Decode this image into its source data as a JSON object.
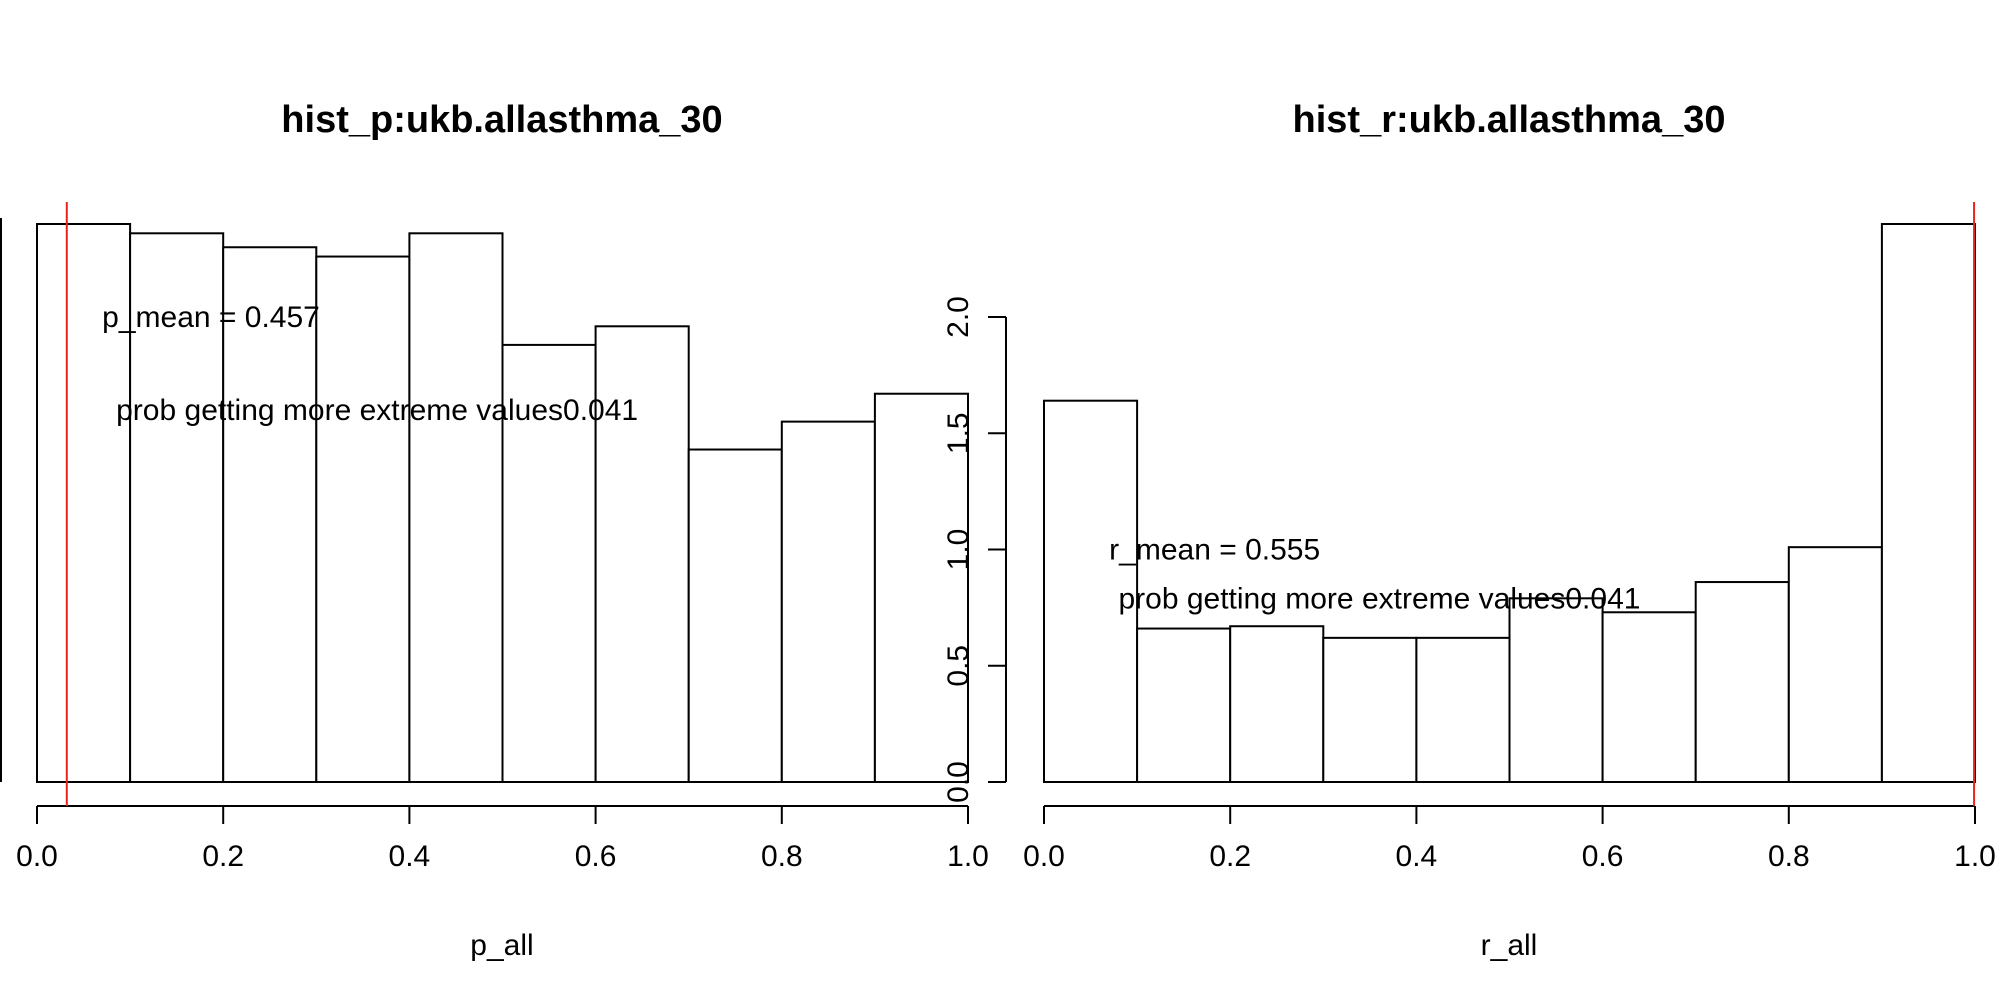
{
  "colors": {
    "reference_line": "#e8231d",
    "bar_fill": "#ffffff",
    "bar_stroke": "#000000"
  },
  "chart_data": [
    {
      "type": "bar",
      "title": "hist_p:ukb.allasthma_30",
      "xlabel": "p_all",
      "ylabel": "",
      "bins": [
        [
          0.0,
          0.1
        ],
        [
          0.1,
          0.2
        ],
        [
          0.2,
          0.3
        ],
        [
          0.3,
          0.4
        ],
        [
          0.4,
          0.5
        ],
        [
          0.5,
          0.6
        ],
        [
          0.6,
          0.7
        ],
        [
          0.7,
          0.8
        ],
        [
          0.8,
          0.9
        ],
        [
          0.9,
          1.0
        ]
      ],
      "values": [
        2.4,
        2.36,
        2.3,
        2.26,
        2.36,
        1.88,
        1.96,
        1.43,
        1.55,
        1.67
      ],
      "xlim": [
        0.0,
        1.0
      ],
      "ylim": [
        0.0,
        2.0
      ],
      "x_ticks": [
        "0.0",
        "0.2",
        "0.4",
        "0.6",
        "0.8",
        "1.0"
      ],
      "y_ticks": [],
      "reference_x": 0.032,
      "annotations": [
        {
          "id": "mean",
          "text": "p_mean = 0.457",
          "x": 0.07,
          "y": 2.0
        },
        {
          "id": "prob",
          "text": "prob getting more extreme values0.041",
          "x": 0.085,
          "y": 1.6
        }
      ],
      "grid": false
    },
    {
      "type": "bar",
      "title": "hist_r:ukb.allasthma_30",
      "xlabel": "r_all",
      "ylabel": "",
      "bins": [
        [
          0.0,
          0.1
        ],
        [
          0.1,
          0.2
        ],
        [
          0.2,
          0.3
        ],
        [
          0.3,
          0.4
        ],
        [
          0.4,
          0.5
        ],
        [
          0.5,
          0.6
        ],
        [
          0.6,
          0.7
        ],
        [
          0.7,
          0.8
        ],
        [
          0.8,
          0.9
        ],
        [
          0.9,
          1.0
        ]
      ],
      "values": [
        1.64,
        0.66,
        0.67,
        0.62,
        0.62,
        0.79,
        0.73,
        0.86,
        1.01,
        2.4
      ],
      "xlim": [
        0.0,
        1.0
      ],
      "ylim": [
        0.0,
        2.0
      ],
      "x_ticks": [
        "0.0",
        "0.2",
        "0.4",
        "0.6",
        "0.8",
        "1.0"
      ],
      "y_ticks": [
        "0.0",
        "0.5",
        "1.0",
        "1.5",
        "2.0"
      ],
      "reference_x": 0.999,
      "annotations": [
        {
          "id": "mean",
          "text": "r_mean = 0.555",
          "x": 0.07,
          "y": 1.0
        },
        {
          "id": "prob",
          "text": "prob getting more extreme values0.041",
          "x": 0.08,
          "y": 0.79
        }
      ],
      "grid": false
    }
  ]
}
